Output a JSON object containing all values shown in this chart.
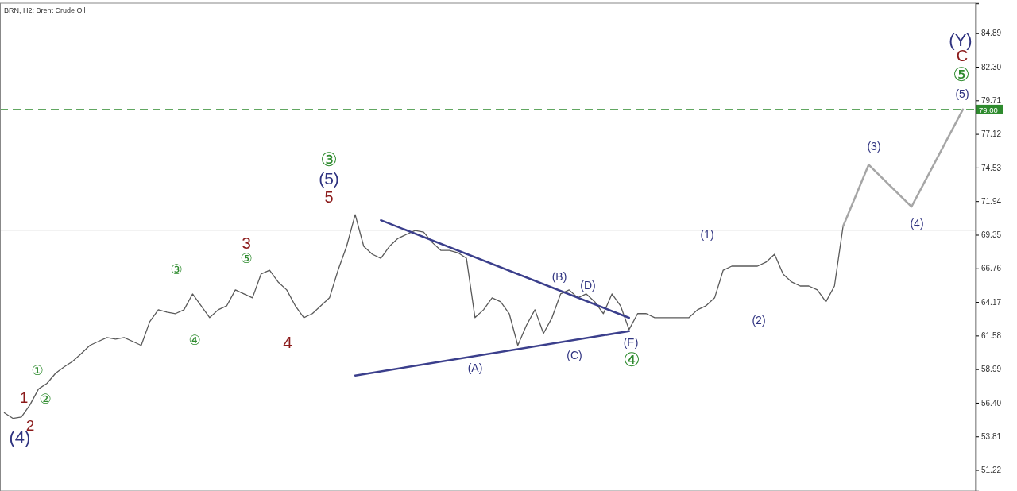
{
  "chart_data": {
    "type": "line",
    "title": "BRN, H2: Brent Crude Oil",
    "categories": [
      null,
      null,
      null,
      null,
      null,
      null,
      null,
      null,
      null,
      null,
      null,
      null,
      null,
      null,
      null,
      null,
      null,
      null,
      null,
      null,
      null,
      null,
      null,
      null,
      null,
      null,
      null,
      null,
      null,
      null,
      null,
      null,
      null,
      null,
      null,
      null,
      null,
      null,
      null,
      null,
      null,
      null,
      null,
      null,
      null,
      null,
      null,
      null,
      null,
      null,
      null,
      null,
      null,
      null,
      null,
      null,
      null,
      null,
      null,
      null,
      null,
      null,
      null,
      null,
      null,
      null,
      null,
      null,
      null,
      null,
      null,
      null,
      null,
      null,
      null,
      null,
      null,
      null,
      null,
      null,
      null,
      null,
      null,
      null,
      null,
      null,
      null,
      null,
      null,
      null,
      null,
      null,
      null,
      null,
      null,
      null,
      null,
      null,
      null,
      null,
      null,
      null,
      null,
      null,
      null,
      null,
      null,
      null,
      null,
      null,
      null,
      null,
      null,
      null
    ],
    "series": [
      {
        "color": "#5a5a5a",
        "values": [
          55.63,
          55.2,
          55.3,
          56.24,
          57.46,
          57.9,
          58.68,
          59.17,
          59.6,
          60.2,
          60.82,
          61.13,
          61.43,
          61.31,
          61.43,
          61.13,
          60.82,
          62.65,
          63.57,
          63.39,
          63.27,
          63.57,
          64.79,
          63.88,
          62.96,
          63.57,
          63.88,
          65.1,
          64.79,
          64.49,
          66.32,
          66.62,
          65.71,
          65.1,
          63.88,
          62.96,
          63.27,
          63.88,
          64.49,
          66.62,
          68.46,
          70.9,
          68.46,
          67.85,
          67.54,
          68.46,
          69.07,
          69.38,
          69.68,
          69.56,
          68.76,
          68.15,
          68.15,
          67.97,
          67.54,
          62.96,
          63.57,
          64.49,
          64.18,
          63.27,
          60.82,
          62.35,
          63.57,
          61.74,
          62.96,
          64.79,
          65.1,
          64.49,
          64.79,
          64.18,
          63.27,
          64.79,
          63.88,
          62.04,
          63.27,
          63.27,
          62.96,
          62.96,
          62.96,
          62.96,
          62.96,
          63.57,
          63.88,
          64.49,
          66.62,
          66.93,
          66.93,
          66.93,
          66.93,
          67.24,
          67.85,
          66.32,
          65.71,
          65.4,
          65.4,
          65.1,
          64.18,
          65.4,
          69.99,
          null,
          null,
          null,
          null,
          null,
          null,
          null,
          null,
          null,
          null,
          null,
          null,
          null,
          null,
          null
        ]
      },
      {
        "color": "#a6a6a6",
        "values": [
          null,
          null,
          null,
          null,
          null,
          null,
          null,
          null,
          null,
          null,
          null,
          null,
          null,
          null,
          null,
          null,
          null,
          null,
          null,
          null,
          null,
          null,
          null,
          null,
          null,
          null,
          null,
          null,
          null,
          null,
          null,
          null,
          null,
          null,
          null,
          null,
          null,
          null,
          null,
          null,
          null,
          null,
          null,
          null,
          null,
          null,
          null,
          null,
          null,
          null,
          null,
          null,
          null,
          null,
          null,
          null,
          null,
          null,
          null,
          null,
          null,
          null,
          null,
          null,
          null,
          null,
          null,
          null,
          null,
          null,
          null,
          null,
          null,
          null,
          null,
          null,
          null,
          null,
          null,
          null,
          null,
          null,
          null,
          null,
          null,
          null,
          null,
          null,
          null,
          null,
          null,
          null,
          null,
          null,
          null,
          null,
          null,
          null,
          69.99,
          null,
          null,
          74.75,
          null,
          null,
          null,
          null,
          71.51,
          null,
          null,
          null,
          null,
          null,
          79.0,
          null
        ]
      },
      {
        "color": "#3b3f8c",
        "values": [
          null,
          null,
          null,
          null,
          null,
          null,
          null,
          null,
          null,
          null,
          null,
          null,
          null,
          null,
          null,
          null,
          null,
          null,
          null,
          null,
          null,
          null,
          null,
          null,
          null,
          null,
          null,
          null,
          null,
          null,
          null,
          null,
          null,
          null,
          null,
          null,
          null,
          null,
          null,
          null,
          null,
          null,
          null,
          null,
          70.47,
          null,
          null,
          null,
          null,
          null,
          null,
          null,
          null,
          null,
          null,
          null,
          null,
          null,
          null,
          null,
          null,
          null,
          null,
          null,
          null,
          null,
          null,
          null,
          null,
          null,
          null,
          null,
          null,
          62.95,
          null,
          null,
          null,
          null,
          null,
          null,
          null,
          null,
          null,
          null,
          null,
          null,
          null,
          null,
          null,
          null,
          null,
          null,
          null,
          null,
          null,
          null,
          null,
          null,
          null,
          null,
          null,
          null,
          null,
          null,
          null,
          null,
          null,
          null,
          null,
          null,
          null,
          null,
          null,
          null
        ]
      },
      {
        "color": "#3b3f8c",
        "values": [
          null,
          null,
          null,
          null,
          null,
          null,
          null,
          null,
          null,
          null,
          null,
          null,
          null,
          null,
          null,
          null,
          null,
          null,
          null,
          null,
          null,
          null,
          null,
          null,
          null,
          null,
          null,
          null,
          null,
          null,
          null,
          null,
          null,
          null,
          null,
          null,
          null,
          null,
          null,
          null,
          null,
          58.5,
          null,
          null,
          null,
          null,
          null,
          null,
          null,
          null,
          null,
          null,
          null,
          null,
          null,
          null,
          null,
          null,
          null,
          null,
          null,
          null,
          null,
          null,
          null,
          null,
          null,
          null,
          null,
          null,
          null,
          null,
          null,
          61.92,
          null,
          null,
          null,
          null,
          null,
          null,
          null,
          null,
          null,
          null,
          null,
          null,
          null,
          null,
          null,
          null,
          null,
          null,
          null,
          null,
          null,
          null,
          null,
          null,
          null,
          null,
          null,
          null,
          null,
          null,
          null,
          null,
          null,
          null,
          null,
          null,
          null,
          null,
          null,
          null
        ]
      }
    ],
    "ylim": [
      49.6,
      87.2
    ],
    "yticks": [
      51.22,
      53.81,
      {
        "value": 56.4,
        "label": "56.40"
      },
      58.99,
      61.58,
      64.17,
      66.76,
      69.35,
      71.94,
      74.53,
      77.12,
      79.71,
      {
        "value": 82.3,
        "label": "82.30"
      },
      84.89
    ],
    "tick_labels": "y",
    "ref_lines": [
      {
        "axis": "y",
        "value": 79.0,
        "label": "79.00",
        "color": "#2e8b2e",
        "line_style": "dashed"
      },
      {
        "axis": "y",
        "value": 69.7,
        "color": "#cccccc",
        "line_style": "solid"
      }
    ],
    "annotations": [
      "(4)",
      "1",
      "2",
      "①",
      "②",
      "③",
      "④",
      "3",
      "⑤",
      "4",
      "③",
      "(5)",
      "5",
      "(A)",
      "(B)",
      "(C)",
      "(D)",
      "(E)",
      "④",
      "(1)",
      "(2)",
      "(3)",
      "(4)",
      "(5)",
      "⑤",
      "C",
      "(Y)"
    ]
  }
}
